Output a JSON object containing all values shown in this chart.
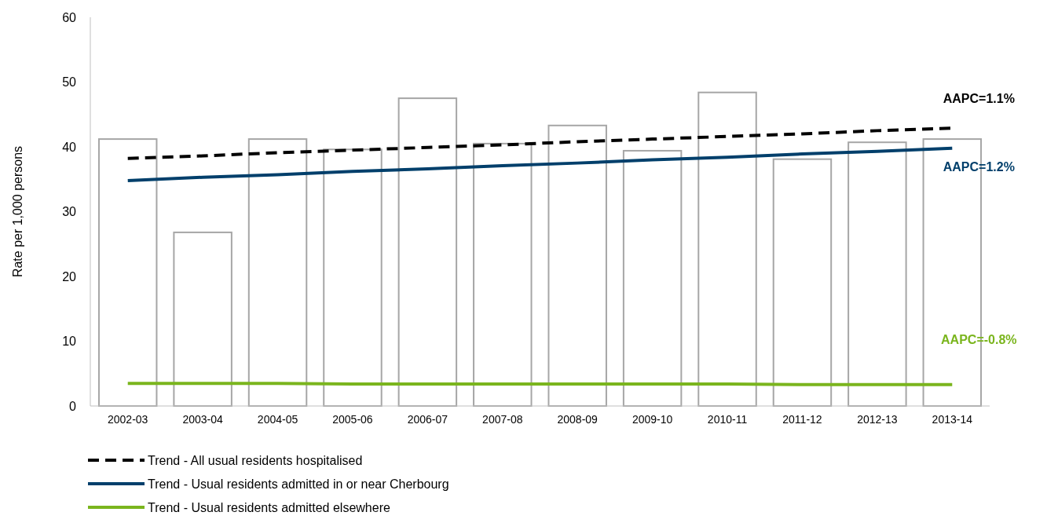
{
  "chart_data": {
    "type": "bar",
    "ylabel": "Rate per 1,000 persons",
    "categories": [
      "2002-03",
      "2003-04",
      "2004-05",
      "2005-06",
      "2006-07",
      "2007-08",
      "2008-09",
      "2009-10",
      "2010-11",
      "2011-12",
      "2012-13",
      "2013-14"
    ],
    "series": [
      {
        "color": "#a6a6a6",
        "values": [
          41.2,
          26.8,
          41.2,
          39.6,
          47.5,
          40.5,
          43.3,
          39.4,
          48.4,
          38.1,
          40.7,
          41.2
        ]
      },
      {
        "type": "line",
        "name": "Trend - All usual residents hospitalised",
        "color": "#000000",
        "line_style": "dashed",
        "values": [
          38.2,
          38.6,
          39.1,
          39.5,
          39.9,
          40.3,
          40.8,
          41.2,
          41.6,
          42.0,
          42.5,
          42.9
        ]
      },
      {
        "type": "line",
        "name": "Trend - Usual residents admitted in or near Cherbourg",
        "color": "#003f6b",
        "line_style": "solid",
        "values": [
          34.8,
          35.3,
          35.7,
          36.2,
          36.6,
          37.1,
          37.5,
          38.0,
          38.4,
          38.9,
          39.3,
          39.8
        ]
      },
      {
        "type": "line",
        "name": "Trend - Usual residents admitted elsewhere",
        "color": "#7ab51d",
        "line_style": "solid",
        "values": [
          3.5,
          3.5,
          3.5,
          3.4,
          3.4,
          3.4,
          3.4,
          3.4,
          3.4,
          3.3,
          3.3,
          3.3
        ]
      }
    ],
    "annotations": [
      "AAPC=1.1%",
      "AAPC=1.2%",
      "AAPC=-0.8%"
    ],
    "ylim": [
      0,
      60
    ],
    "yticks": [
      0,
      10,
      20,
      30,
      40,
      50,
      60
    ],
    "grid": false,
    "legend": "bottom left",
    "marker": "none"
  }
}
